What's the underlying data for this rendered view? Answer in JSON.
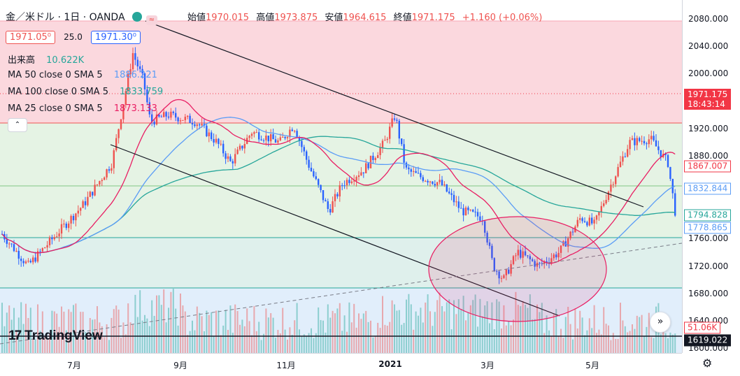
{
  "header": {
    "symbol": "金／米ドル · 1日 · OANDA",
    "ohlc": [
      {
        "key": "始値",
        "value": "1970.015"
      },
      {
        "key": "高値",
        "value": "1973.875"
      },
      {
        "key": "安値",
        "value": "1964.615"
      },
      {
        "key": "終値",
        "value": "1971.175"
      },
      {
        "key": "",
        "value": "+1.160 (+0.06%)"
      }
    ],
    "bid": "1971.05⁰",
    "spread": "25.0",
    "ask": "1971.30⁰"
  },
  "legend": {
    "volume_label": "出来高",
    "volume_value": "10.622K",
    "ma": [
      {
        "label": "MA 50 close 0 SMA 5",
        "value": "1886.221",
        "color": "#5b9cf6"
      },
      {
        "label": "MA 100 close 0 SMA 5",
        "value": "1833.759",
        "color": "#26a69a"
      },
      {
        "label": "MA 25 close 0 SMA 5",
        "value": "1873.133",
        "color": "#e91e63"
      }
    ],
    "collapse_glyph": "⌃"
  },
  "logo": {
    "text": "TradingView",
    "glyph": "17"
  },
  "scroll_glyph": "»",
  "settings_glyph": "⚙",
  "price_axis": {
    "ticks": [
      "2080.000",
      "2040.000",
      "2000.000",
      "1920.000",
      "1880.000",
      "1760.000",
      "1720.000",
      "1680.000",
      "1640.000",
      "1600.000"
    ],
    "labels": [
      {
        "text": "1971.175",
        "sub": "18:43:14",
        "color": "#f23645",
        "filled": true
      },
      {
        "text": "1867.007",
        "color": "#f23645",
        "filled": false
      },
      {
        "text": "1832.844",
        "color": "#5b9cf6",
        "filled": false
      },
      {
        "text": "1794.828",
        "color": "#26a69a",
        "filled": false
      },
      {
        "text": "1778.865",
        "color": "#5b9cf6",
        "filled": false
      },
      {
        "text": "51.06K",
        "color": "#f23645",
        "filled": false
      },
      {
        "text": "1619.022",
        "color": "#131722",
        "filled": true
      }
    ]
  },
  "time_axis": {
    "ticks": [
      {
        "label": "7月",
        "bold": false
      },
      {
        "label": "9月",
        "bold": false
      },
      {
        "label": "11月",
        "bold": false
      },
      {
        "label": "2021",
        "bold": true
      },
      {
        "label": "3月",
        "bold": false
      },
      {
        "label": "5月",
        "bold": false
      }
    ]
  },
  "colors": {
    "up": "#ef5350",
    "down": "#2962ff",
    "ma25": "#e91e63",
    "ma50": "#5b9cf6",
    "ma100": "#26a69a"
  }
}
